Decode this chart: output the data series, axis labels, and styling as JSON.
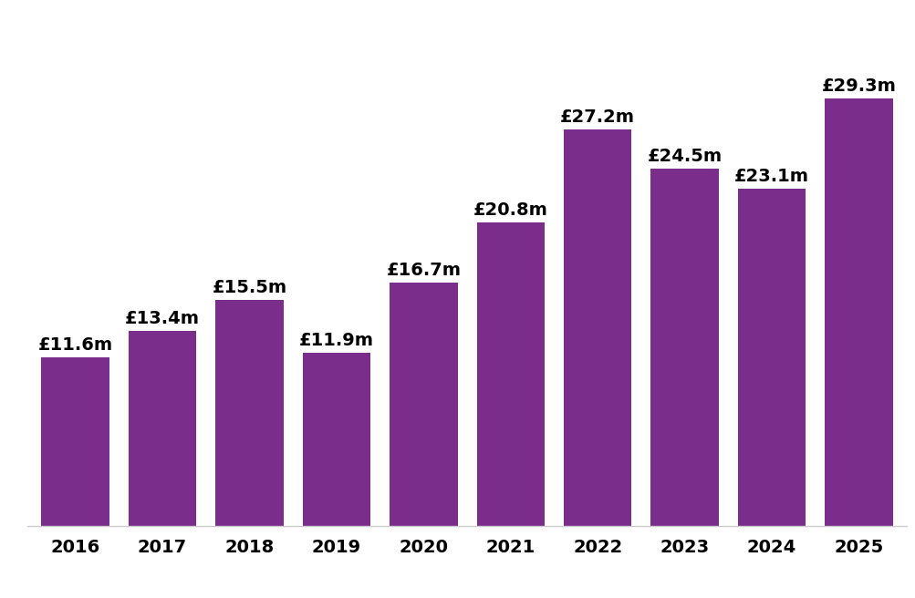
{
  "years": [
    "2016",
    "2017",
    "2018",
    "2019",
    "2020",
    "2021",
    "2022",
    "2023",
    "2024",
    "2025"
  ],
  "values": [
    11.6,
    13.4,
    15.5,
    11.9,
    16.7,
    20.8,
    27.2,
    24.5,
    23.1,
    29.3
  ],
  "labels": [
    "£11.6m",
    "£13.4m",
    "£15.5m",
    "£11.9m",
    "£16.7m",
    "£20.8m",
    "£27.2m",
    "£24.5m",
    "£23.1m",
    "£29.3m"
  ],
  "bar_color": "#7B2D8B",
  "background_color": "#ffffff",
  "label_fontsize": 14,
  "label_fontweight": "bold",
  "tick_fontsize": 14,
  "tick_fontweight": "bold",
  "ylim": [
    0,
    34
  ],
  "bar_width": 0.78
}
